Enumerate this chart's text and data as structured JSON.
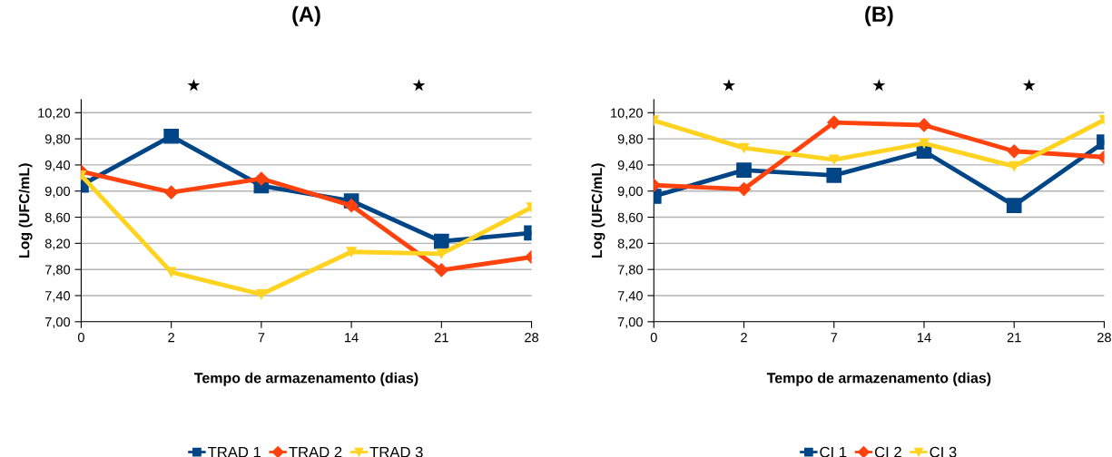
{
  "chart_data": [
    {
      "type": "line",
      "title": "(A)",
      "xlabel": "Tempo de armazenamento (dias)",
      "ylabel": "Log (UFC/mL)",
      "categories": [
        "0",
        "2",
        "7",
        "14",
        "21",
        "28"
      ],
      "series": [
        {
          "name": "TRAD 1",
          "color": "#004586",
          "marker": "square",
          "values": [
            9.09,
            9.84,
            9.08,
            8.85,
            8.23,
            8.36
          ]
        },
        {
          "name": "TRAD 2",
          "color": "#ff420e",
          "marker": "diamond",
          "values": [
            9.3,
            8.98,
            9.19,
            8.78,
            7.79,
            7.99
          ]
        },
        {
          "name": "TRAD 3",
          "color": "#ffd320",
          "marker": "triangle",
          "values": [
            9.24,
            7.76,
            7.42,
            8.07,
            8.04,
            8.75
          ]
        }
      ],
      "ylim": [
        7.0,
        10.4
      ],
      "yticks": [
        {
          "value": 7.0,
          "label": "7,00"
        },
        {
          "value": 7.4,
          "label": "7,40"
        },
        {
          "value": 7.8,
          "label": "7,80"
        },
        {
          "value": 8.2,
          "label": "8,20"
        },
        {
          "value": 8.6,
          "label": "8,60"
        },
        {
          "value": 9.0,
          "label": "9,00"
        },
        {
          "value": 9.4,
          "label": "9,40"
        },
        {
          "value": 9.8,
          "label": "9,80"
        },
        {
          "value": 10.2,
          "label": "10,20"
        }
      ],
      "annotations": [
        "★",
        "★"
      ],
      "grid": "y",
      "legend": "bottom",
      "line_style": "solid"
    },
    {
      "type": "line",
      "title": "(B)",
      "xlabel": "Tempo de armazenamento (dias)",
      "ylabel": "Log (UFC/mL)",
      "categories": [
        "0",
        "2",
        "7",
        "14",
        "21",
        "28"
      ],
      "series": [
        {
          "name": "CI 1",
          "color": "#004586",
          "marker": "square",
          "values": [
            8.92,
            9.32,
            9.24,
            9.61,
            8.78,
            9.75
          ]
        },
        {
          "name": "CI 2",
          "color": "#ff420e",
          "marker": "diamond",
          "values": [
            9.09,
            9.03,
            10.05,
            10.01,
            9.61,
            9.52
          ]
        },
        {
          "name": "CI 3",
          "color": "#ffd320",
          "marker": "triangle",
          "values": [
            10.08,
            9.66,
            9.48,
            9.73,
            9.38,
            10.09
          ]
        }
      ],
      "ylim": [
        7.0,
        10.4
      ],
      "yticks": [
        {
          "value": 7.0,
          "label": "7,00"
        },
        {
          "value": 7.4,
          "label": "7,40"
        },
        {
          "value": 7.8,
          "label": "7,80"
        },
        {
          "value": 8.2,
          "label": "8,20"
        },
        {
          "value": 8.6,
          "label": "8,60"
        },
        {
          "value": 9.0,
          "label": "9,00"
        },
        {
          "value": 9.4,
          "label": "9,40"
        },
        {
          "value": 9.8,
          "label": "9,80"
        },
        {
          "value": 10.2,
          "label": "10,20"
        }
      ],
      "annotations": [
        "★",
        "★",
        "★"
      ],
      "grid": "y",
      "legend": "bottom",
      "line_style": "solid"
    }
  ]
}
